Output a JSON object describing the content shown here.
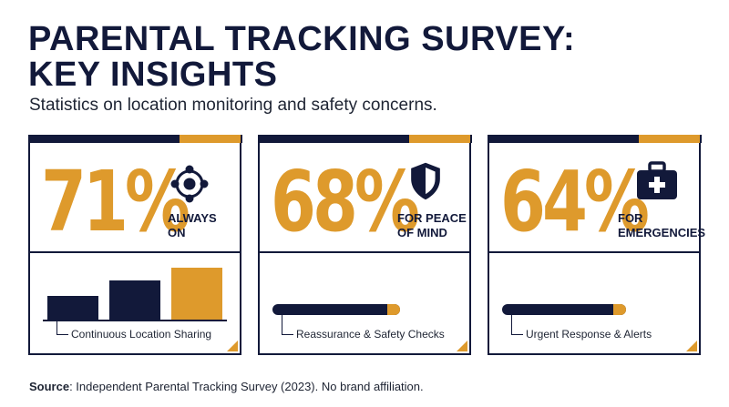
{
  "header": {
    "title_line1": "PARENTAL TRACKING SURVEY:",
    "title_line2": "KEY INSIGHTS",
    "subtitle": "Statistics on location monitoring and safety concerns."
  },
  "colors": {
    "navy": "#12193a",
    "gold": "#de9a2c"
  },
  "cards": [
    {
      "percent": "71%",
      "label_line1": "ALWAYS",
      "label_line2": "ON",
      "icon": "connected-network-icon",
      "caption": "Continuous Location Sharing",
      "bars": [
        0.46,
        0.75,
        1.0
      ]
    },
    {
      "percent": "68%",
      "label_line1": "FOR PEACE",
      "label_line2": "OF MIND",
      "icon": "shield-icon",
      "caption": "Reassurance & Safety Checks"
    },
    {
      "percent": "64%",
      "label_line1": "FOR",
      "label_line2": "EMERGENCIES",
      "icon": "first-aid-kit-icon",
      "caption": "Urgent Response & Alerts"
    }
  ],
  "footer": {
    "source_label": "Source",
    "source_text": ": Independent Parental Tracking Survey (2023). No brand affiliation."
  }
}
